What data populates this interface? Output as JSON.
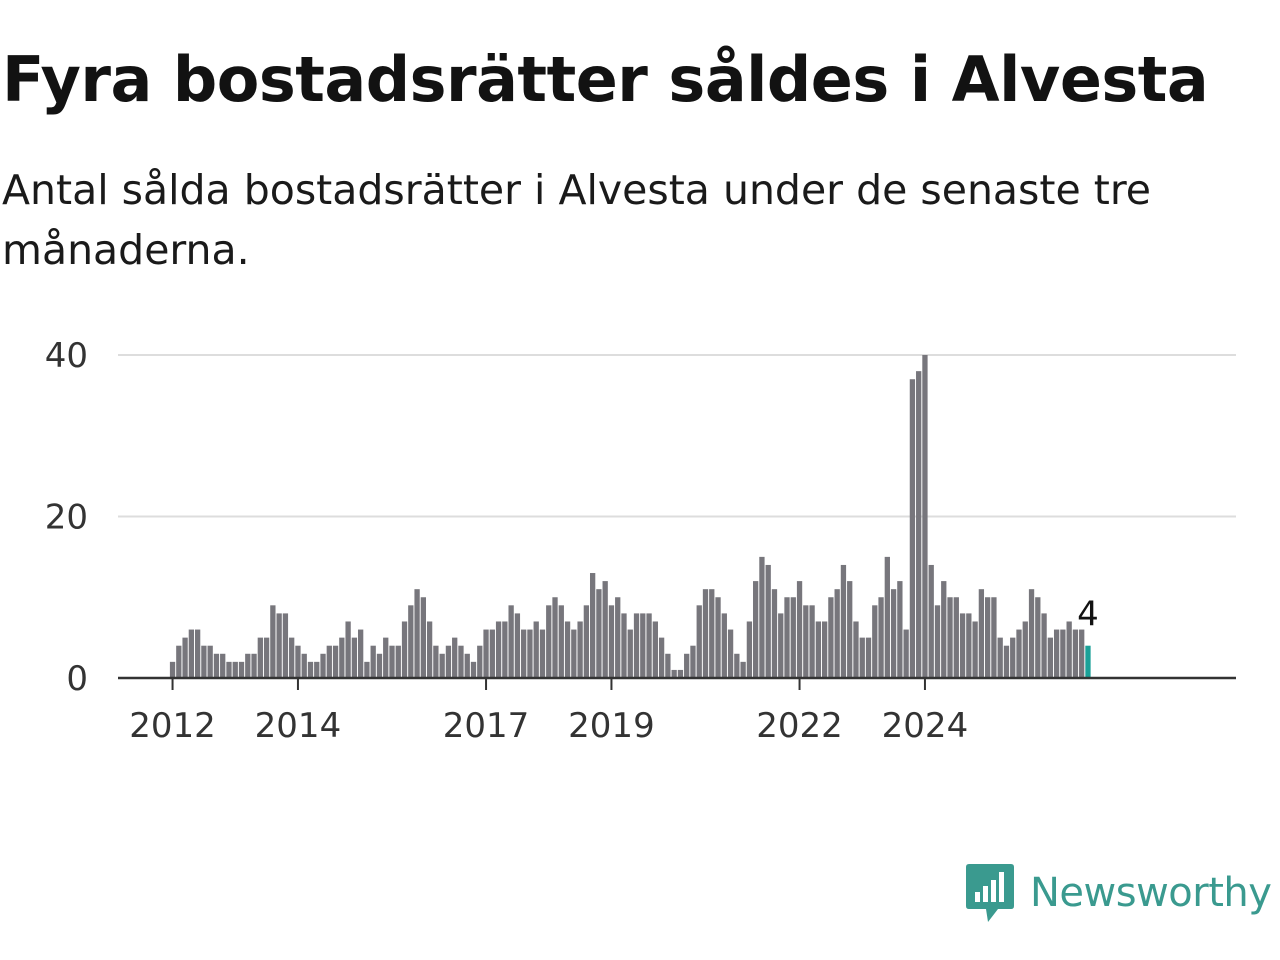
{
  "title": "Fyra bostadsrätter såldes i Alvesta",
  "subtitle": "Antal sålda bostadsrätter i Alvesta under de senaste tre månaderna.",
  "brand": {
    "name": "Newsworthy",
    "icon": "newsworthy-logo-icon",
    "color": "#3a9a8f"
  },
  "colors": {
    "bar": "#77767c",
    "highlight": "#1aa198",
    "grid": "#dddddd",
    "axis": "#333333"
  },
  "chart_data": {
    "type": "bar",
    "title": "Fyra bostadsrätter såldes i Alvesta",
    "subtitle": "Antal sålda bostadsrätter i Alvesta under de senaste tre månaderna.",
    "xlabel": "",
    "ylabel": "",
    "x_tick_labels": [
      "2012",
      "2014",
      "2017",
      "2019",
      "2022",
      "2024"
    ],
    "x_tick_positions": [
      0,
      20,
      50,
      70,
      100,
      120
    ],
    "y_ticks": [
      0,
      20,
      40
    ],
    "ylim": [
      0,
      40
    ],
    "grid": true,
    "last_value_label": "4",
    "values": [
      2,
      4,
      5,
      6,
      6,
      4,
      4,
      3,
      3,
      2,
      2,
      2,
      3,
      3,
      5,
      5,
      9,
      8,
      8,
      5,
      4,
      3,
      2,
      2,
      3,
      4,
      4,
      5,
      7,
      5,
      6,
      2,
      4,
      3,
      5,
      4,
      4,
      7,
      9,
      11,
      10,
      7,
      4,
      3,
      4,
      5,
      4,
      3,
      2,
      4,
      6,
      6,
      7,
      7,
      9,
      8,
      6,
      6,
      7,
      6,
      9,
      10,
      9,
      7,
      6,
      7,
      9,
      13,
      11,
      12,
      9,
      10,
      8,
      6,
      8,
      8,
      8,
      7,
      5,
      3,
      1,
      1,
      3,
      4,
      9,
      11,
      11,
      10,
      8,
      6,
      3,
      2,
      7,
      12,
      15,
      14,
      11,
      8,
      10,
      10,
      12,
      9,
      9,
      7,
      7,
      10,
      11,
      14,
      12,
      7,
      5,
      5,
      9,
      10,
      15,
      11,
      12,
      6,
      37,
      38,
      40,
      14,
      9,
      12,
      10,
      10,
      8,
      8,
      7,
      11,
      10,
      10,
      5,
      4,
      5,
      6,
      7,
      11,
      10,
      8,
      5,
      6,
      6,
      7,
      6,
      6,
      4
    ]
  }
}
